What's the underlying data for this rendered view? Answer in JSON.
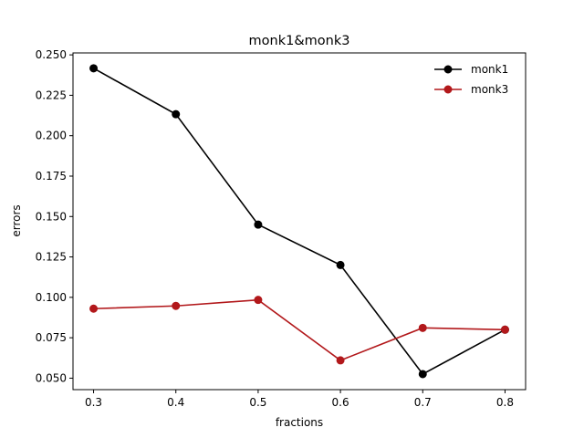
{
  "chart_data": {
    "type": "line",
    "title": "monk1&monk3",
    "xlabel": "fractions",
    "ylabel": "errors",
    "x": [
      0.3,
      0.4,
      0.5,
      0.6,
      0.7,
      0.8
    ],
    "xlim": [
      0.275,
      0.825
    ],
    "ylim": [
      0.0429,
      0.2512
    ],
    "x_tick_labels": [
      "0.3",
      "0.4",
      "0.5",
      "0.6",
      "0.7",
      "0.8"
    ],
    "y_ticks": [
      0.05,
      0.075,
      0.1,
      0.125,
      0.15,
      0.175,
      0.2,
      0.225,
      0.25
    ],
    "y_tick_labels": [
      "0.050",
      "0.075",
      "0.100",
      "0.125",
      "0.150",
      "0.175",
      "0.200",
      "0.225",
      "0.250"
    ],
    "grid": false,
    "legend_position": "top-right",
    "series": [
      {
        "name": "monk1",
        "color": "#000000",
        "marker": "circle",
        "values": [
          0.2417,
          0.2133,
          0.145,
          0.12,
          0.0525,
          0.08
        ]
      },
      {
        "name": "monk3",
        "color": "#b2181b",
        "marker": "circle",
        "values": [
          0.093,
          0.0947,
          0.0984,
          0.061,
          0.0811,
          0.08
        ]
      }
    ]
  }
}
